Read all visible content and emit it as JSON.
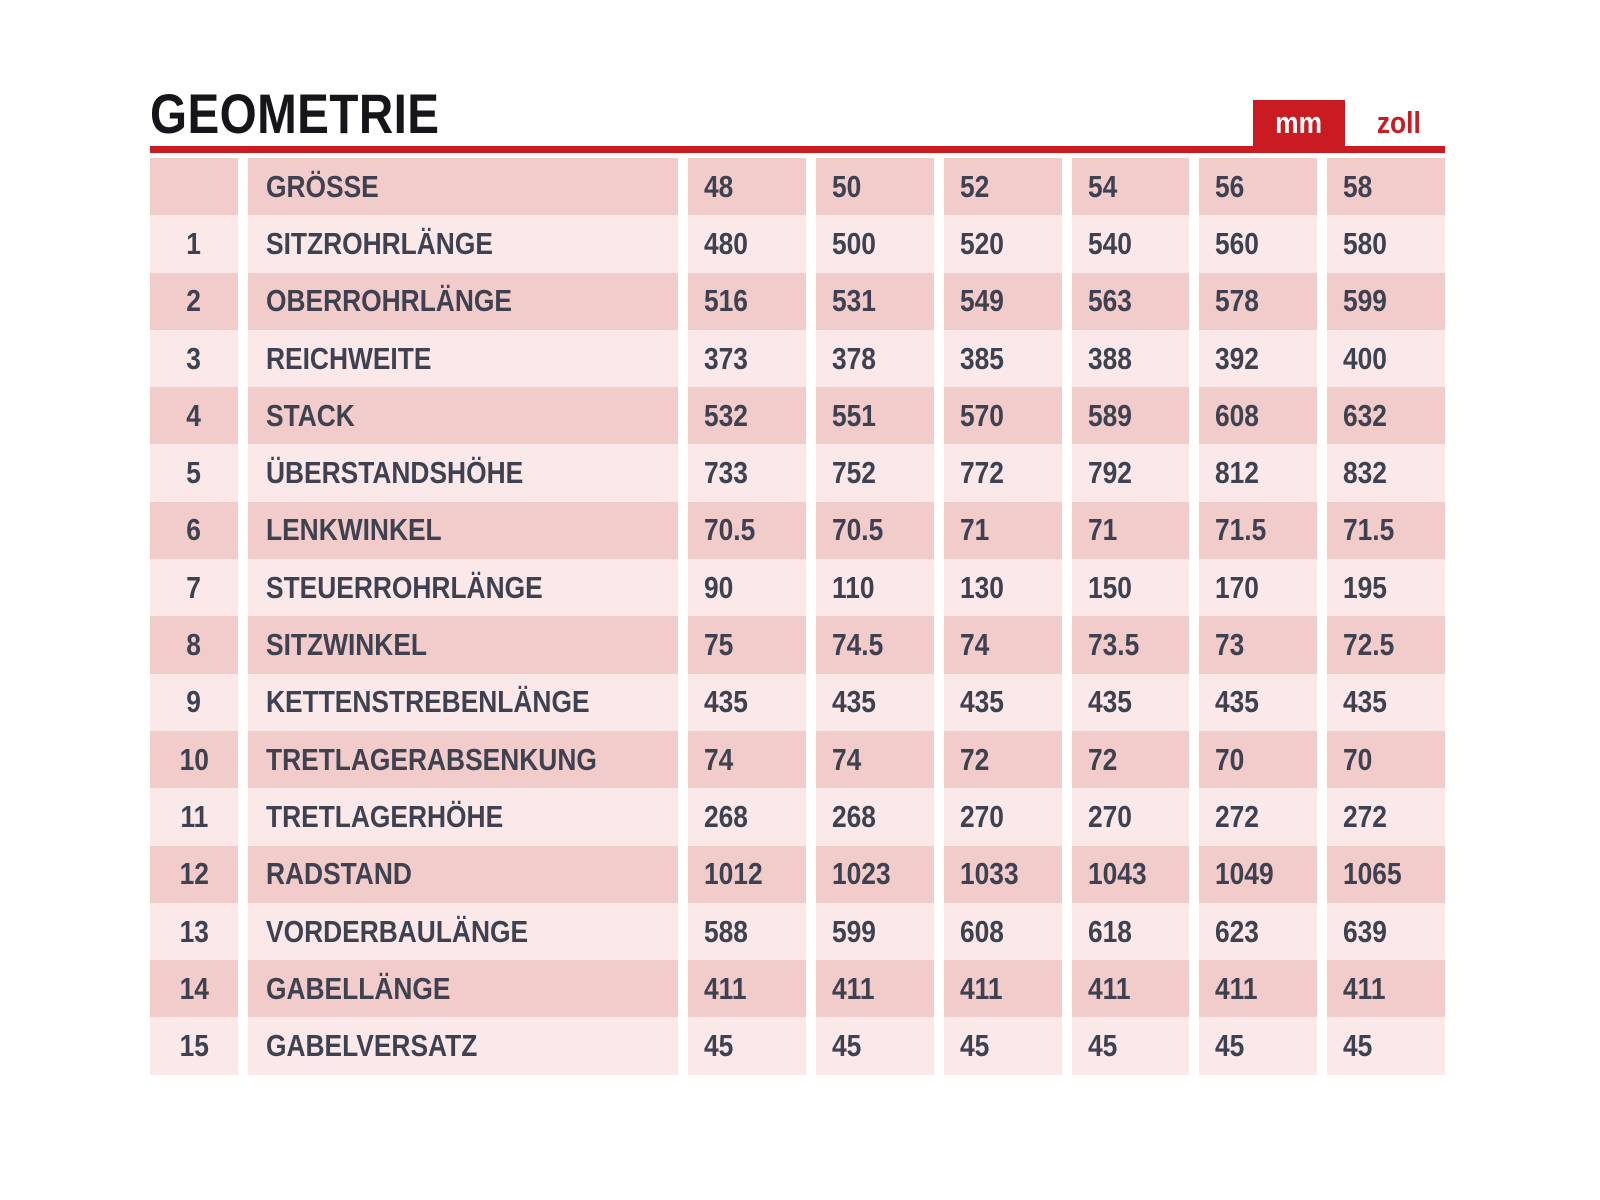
{
  "page": {
    "title": "GEOMETRIE"
  },
  "unit_toggle": {
    "mm_label": "mm",
    "zoll_label": "zoll",
    "active": "mm"
  },
  "colors": {
    "accent_red": "#cb1b22",
    "row_dark_pink": "#f2cbcb",
    "row_light_pink": "#fbe8e8",
    "table_text": "#3e4250",
    "title_text": "#16161a",
    "active_tab_text": "#ffffff"
  },
  "table": {
    "size_header_label": "GRÖSSE",
    "sizes": [
      "48",
      "50",
      "52",
      "54",
      "56",
      "58"
    ],
    "rows": [
      {
        "num": "1",
        "label": "SITZROHRLÄNGE",
        "values": [
          "480",
          "500",
          "520",
          "540",
          "560",
          "580"
        ]
      },
      {
        "num": "2",
        "label": "OBERROHRLÄNGE",
        "values": [
          "516",
          "531",
          "549",
          "563",
          "578",
          "599"
        ]
      },
      {
        "num": "3",
        "label": "REICHWEITE",
        "values": [
          "373",
          "378",
          "385",
          "388",
          "392",
          "400"
        ]
      },
      {
        "num": "4",
        "label": "STACK",
        "values": [
          "532",
          "551",
          "570",
          "589",
          "608",
          "632"
        ]
      },
      {
        "num": "5",
        "label": "ÜBERSTANDSHÖHE",
        "values": [
          "733",
          "752",
          "772",
          "792",
          "812",
          "832"
        ]
      },
      {
        "num": "6",
        "label": "LENKWINKEL",
        "values": [
          "70.5",
          "70.5",
          "71",
          "71",
          "71.5",
          "71.5"
        ]
      },
      {
        "num": "7",
        "label": "STEUERROHRLÄNGE",
        "values": [
          "90",
          "110",
          "130",
          "150",
          "170",
          "195"
        ]
      },
      {
        "num": "8",
        "label": "SITZWINKEL",
        "values": [
          "75",
          "74.5",
          "74",
          "73.5",
          "73",
          "72.5"
        ]
      },
      {
        "num": "9",
        "label": "KETTENSTREBENLÄNGE",
        "values": [
          "435",
          "435",
          "435",
          "435",
          "435",
          "435"
        ]
      },
      {
        "num": "10",
        "label": "TRETLAGERABSENKUNG",
        "values": [
          "74",
          "74",
          "72",
          "72",
          "70",
          "70"
        ]
      },
      {
        "num": "11",
        "label": "TRETLAGERHÖHE",
        "values": [
          "268",
          "268",
          "270",
          "270",
          "272",
          "272"
        ]
      },
      {
        "num": "12",
        "label": "RADSTAND",
        "values": [
          "1012",
          "1023",
          "1033",
          "1043",
          "1049",
          "1065"
        ]
      },
      {
        "num": "13",
        "label": "VORDERBAULÄNGE",
        "values": [
          "588",
          "599",
          "608",
          "618",
          "623",
          "639"
        ]
      },
      {
        "num": "14",
        "label": "GABELLÄNGE",
        "values": [
          "411",
          "411",
          "411",
          "411",
          "411",
          "411"
        ]
      },
      {
        "num": "15",
        "label": "GABELVERSATZ",
        "values": [
          "45",
          "45",
          "45",
          "45",
          "45",
          "45"
        ]
      }
    ]
  }
}
